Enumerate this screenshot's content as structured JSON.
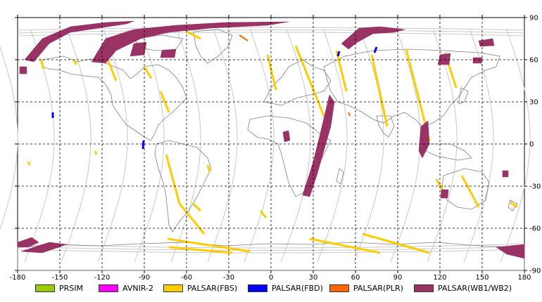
{
  "map": {
    "x_tick_labels": [
      "-180",
      "-150",
      "-120",
      "-90",
      "-60",
      "-30",
      "0",
      "30",
      "60",
      "90",
      "120",
      "150",
      "180"
    ],
    "y_tick_labels": [
      "90",
      "60",
      "30",
      "0",
      "-30",
      "-60",
      "-90"
    ],
    "colors": {
      "orbit": "#c8c8c8",
      "coast": "#808080",
      "grid": "#000000"
    }
  },
  "legend": [
    {
      "label": "PRSIM",
      "color": "#99cc00"
    },
    {
      "label": "AVNIR-2",
      "color": "#ff00ff"
    },
    {
      "label": "PALSAR(FBS)",
      "color": "#ffcc00"
    },
    {
      "label": "PALSAR(FBD)",
      "color": "#0000ff"
    },
    {
      "label": "PALSAR(PLR)",
      "color": "#ff6600"
    },
    {
      "label": "PALSAR(WB1/WB2)",
      "color": "#993366"
    }
  ]
}
